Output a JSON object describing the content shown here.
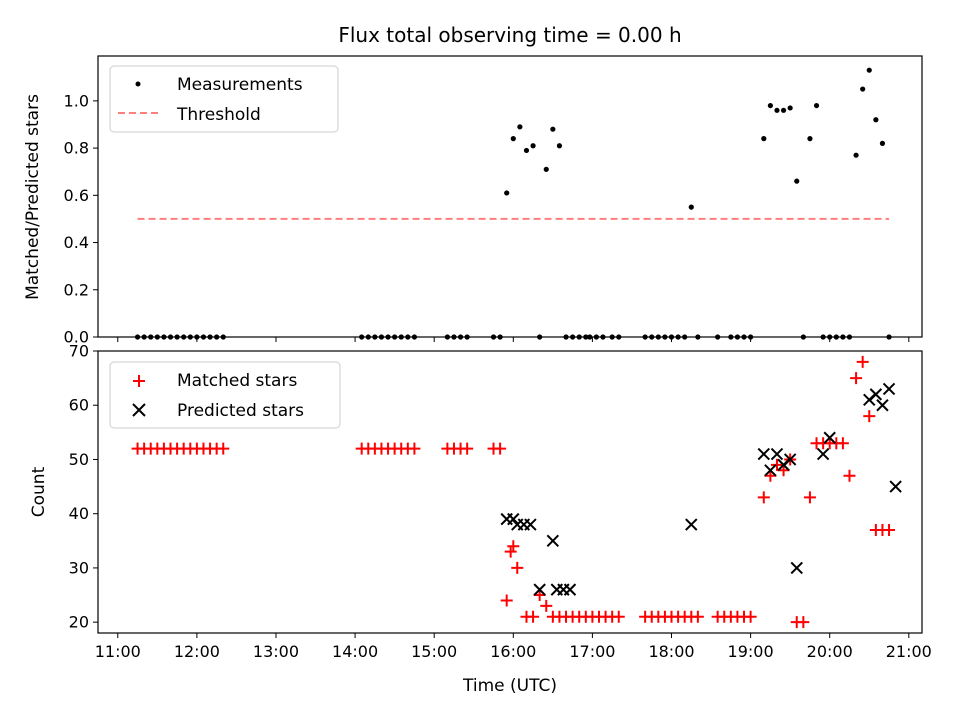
{
  "chart_data": [
    {
      "type": "scatter",
      "title": "Flux total observing time = 0.00 h",
      "xlabel": "",
      "ylabel": "Matched/Predicted stars",
      "xlim": [
        "10:45",
        "21:10"
      ],
      "ylim": [
        0,
        1.19
      ],
      "yticks": [
        "0.0",
        "0.2",
        "0.4",
        "0.6",
        "0.8",
        "1.0"
      ],
      "ytick_values": [
        0,
        0.2,
        0.4,
        0.6,
        0.8,
        1.0
      ],
      "xticks_shown": false,
      "grid": false,
      "legend_position": "upper left",
      "series": [
        {
          "name": "Measurements",
          "marker": "dot",
          "color": "#000000",
          "x": [
            "11:15",
            "11:20",
            "11:25",
            "11:30",
            "11:35",
            "11:40",
            "11:45",
            "11:50",
            "11:55",
            "12:00",
            "12:05",
            "12:10",
            "12:15",
            "12:20",
            "14:05",
            "14:10",
            "14:15",
            "14:20",
            "14:25",
            "14:30",
            "14:35",
            "14:40",
            "14:45",
            "15:10",
            "15:15",
            "15:20",
            "15:25",
            "15:45",
            "15:50",
            "15:55",
            "16:00",
            "16:05",
            "16:10",
            "16:15",
            "16:20",
            "16:25",
            "16:30",
            "16:35",
            "16:40",
            "16:45",
            "16:50",
            "16:55",
            "16:58",
            "17:03",
            "17:08",
            "17:15",
            "17:20",
            "17:40",
            "17:45",
            "17:50",
            "17:55",
            "18:00",
            "18:05",
            "18:10",
            "18:15",
            "18:20",
            "18:35",
            "18:45",
            "18:50",
            "18:55",
            "19:00",
            "19:10",
            "19:15",
            "19:20",
            "19:25",
            "19:30",
            "19:35",
            "19:40",
            "19:45",
            "19:50",
            "19:55",
            "20:00",
            "20:05",
            "20:10",
            "20:15",
            "20:20",
            "20:25",
            "20:30",
            "20:35",
            "20:40",
            "20:45"
          ],
          "y": [
            0,
            0,
            0,
            0,
            0,
            0,
            0,
            0,
            0,
            0,
            0,
            0,
            0,
            0,
            0,
            0,
            0,
            0,
            0,
            0,
            0,
            0,
            0,
            0,
            0,
            0,
            0,
            0,
            0,
            0.61,
            0.84,
            0.89,
            0.79,
            0.81,
            0,
            0.71,
            0.88,
            0.81,
            0,
            0,
            0,
            0,
            0,
            0,
            0,
            0,
            0,
            0,
            0,
            0,
            0,
            0,
            0,
            0,
            0.55,
            0,
            0,
            0,
            0,
            0,
            0,
            0.84,
            0.98,
            0.96,
            0.96,
            0.97,
            0.66,
            0,
            0.84,
            0.98,
            0,
            0,
            0,
            0,
            0,
            0.77,
            1.05,
            1.13,
            0.92,
            0.82,
            0
          ]
        },
        {
          "name": "Threshold",
          "style": "dashed",
          "color": "#ff7f7f",
          "x": [
            "11:15",
            "20:45"
          ],
          "y": [
            0.5,
            0.5
          ]
        }
      ]
    },
    {
      "type": "scatter",
      "title": "",
      "xlabel": "Time (UTC)",
      "ylabel": "Count",
      "xlim": [
        "10:45",
        "21:10"
      ],
      "ylim": [
        18,
        70
      ],
      "yticks": [
        "20",
        "30",
        "40",
        "50",
        "60",
        "70"
      ],
      "ytick_values": [
        20,
        30,
        40,
        50,
        60,
        70
      ],
      "xticks": [
        "11:00",
        "12:00",
        "13:00",
        "14:00",
        "15:00",
        "16:00",
        "17:00",
        "18:00",
        "19:00",
        "20:00",
        "21:00"
      ],
      "grid": false,
      "legend_position": "upper left",
      "series": [
        {
          "name": "Matched stars",
          "marker": "plus",
          "color": "#ff0000",
          "x": [
            "11:15",
            "11:20",
            "11:25",
            "11:30",
            "11:35",
            "11:40",
            "11:45",
            "11:50",
            "11:55",
            "12:00",
            "12:05",
            "12:10",
            "12:15",
            "12:20",
            "14:05",
            "14:10",
            "14:15",
            "14:20",
            "14:25",
            "14:30",
            "14:35",
            "14:40",
            "14:45",
            "15:10",
            "15:15",
            "15:20",
            "15:25",
            "15:45",
            "15:50",
            "15:55",
            "15:58",
            "16:00",
            "16:03",
            "16:10",
            "16:15",
            "16:20",
            "16:25",
            "16:30",
            "16:35",
            "16:40",
            "16:45",
            "16:50",
            "16:55",
            "17:00",
            "17:05",
            "17:10",
            "17:15",
            "17:20",
            "17:40",
            "17:45",
            "17:50",
            "17:55",
            "18:00",
            "18:05",
            "18:10",
            "18:15",
            "18:20",
            "18:35",
            "18:40",
            "18:45",
            "18:50",
            "18:55",
            "19:00",
            "19:10",
            "19:15",
            "19:20",
            "19:25",
            "19:30",
            "19:35",
            "19:40",
            "19:45",
            "19:50",
            "19:55",
            "20:00",
            "20:05",
            "20:10",
            "20:15",
            "20:20",
            "20:25",
            "20:30",
            "20:35",
            "20:40",
            "20:45"
          ],
          "y": [
            52,
            52,
            52,
            52,
            52,
            52,
            52,
            52,
            52,
            52,
            52,
            52,
            52,
            52,
            52,
            52,
            52,
            52,
            52,
            52,
            52,
            52,
            52,
            52,
            52,
            52,
            52,
            52,
            52,
            24,
            33,
            34,
            30,
            21,
            21,
            25,
            23,
            21,
            21,
            21,
            21,
            21,
            21,
            21,
            21,
            21,
            21,
            21,
            21,
            21,
            21,
            21,
            21,
            21,
            21,
            21,
            21,
            21,
            21,
            21,
            21,
            21,
            21,
            43,
            47,
            49,
            48,
            50,
            20,
            20,
            43,
            53,
            53,
            53,
            53,
            53,
            47,
            65,
            68,
            58,
            37,
            37,
            37
          ]
        },
        {
          "name": "Predicted stars",
          "marker": "x",
          "color": "#000000",
          "x": [
            "15:55",
            "16:00",
            "16:03",
            "16:08",
            "16:13",
            "16:20",
            "16:30",
            "16:33",
            "16:38",
            "16:43",
            "18:15",
            "19:10",
            "19:15",
            "19:20",
            "19:25",
            "19:30",
            "19:35",
            "19:55",
            "20:00",
            "20:30",
            "20:35",
            "20:40",
            "20:45",
            "20:50"
          ],
          "y": [
            39,
            39,
            38,
            38,
            38,
            26,
            35,
            26,
            26,
            26,
            38,
            51,
            48,
            51,
            49,
            50,
            30,
            51,
            54,
            61,
            62,
            60,
            63,
            45
          ]
        }
      ]
    }
  ]
}
